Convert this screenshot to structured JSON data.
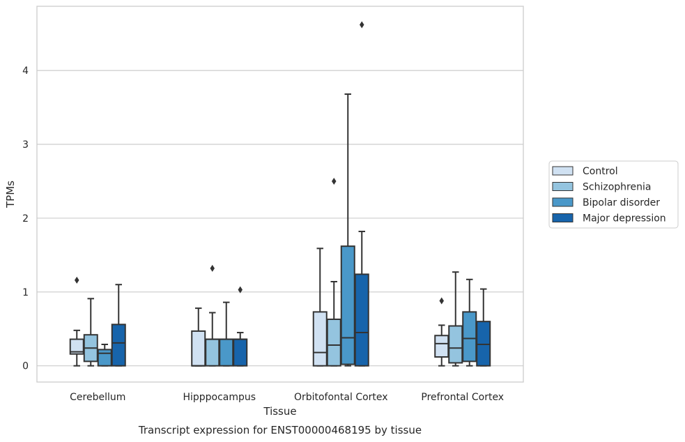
{
  "chart_data": {
    "type": "box",
    "xlabel": "Tissue",
    "ylabel": "TPMs",
    "caption": "Transcript expression for ENST00000468195 by tissue",
    "categories": [
      "Cerebellum",
      "Hipppocampus",
      "Orbitofontal Cortex",
      "Prefrontal Cortex"
    ],
    "ylim": [
      -0.22,
      4.87
    ],
    "yticks": [
      0,
      1,
      2,
      3,
      4
    ],
    "grid": "horizontal",
    "legend_position": "right",
    "series": [
      {
        "name": "Control",
        "color": "#d0e1f2",
        "boxes": [
          {
            "whisker_low": 0.0,
            "q1": 0.16,
            "median": 0.19,
            "q3": 0.36,
            "whisker_high": 0.48,
            "outliers": [
              1.16
            ]
          },
          {
            "whisker_low": 0.0,
            "q1": 0.0,
            "median": 0.0,
            "q3": 0.47,
            "whisker_high": 0.78,
            "outliers": []
          },
          {
            "whisker_low": 0.0,
            "q1": 0.0,
            "median": 0.18,
            "q3": 0.73,
            "whisker_high": 1.59,
            "outliers": []
          },
          {
            "whisker_low": 0.0,
            "q1": 0.12,
            "median": 0.3,
            "q3": 0.41,
            "whisker_high": 0.55,
            "outliers": [
              0.88
            ]
          }
        ]
      },
      {
        "name": "Schizophrenia",
        "color": "#94c4df",
        "boxes": [
          {
            "whisker_low": 0.0,
            "q1": 0.06,
            "median": 0.24,
            "q3": 0.42,
            "whisker_high": 0.91,
            "outliers": []
          },
          {
            "whisker_low": 0.0,
            "q1": 0.0,
            "median": 0.36,
            "q3": 0.36,
            "whisker_high": 0.72,
            "outliers": [
              1.32
            ]
          },
          {
            "whisker_low": 0.0,
            "q1": 0.0,
            "median": 0.28,
            "q3": 0.63,
            "whisker_high": 1.14,
            "outliers": [
              2.5
            ]
          },
          {
            "whisker_low": 0.0,
            "q1": 0.04,
            "median": 0.24,
            "q3": 0.54,
            "whisker_high": 1.27,
            "outliers": []
          }
        ]
      },
      {
        "name": "Bipolar disorder",
        "color": "#4a98c9",
        "boxes": [
          {
            "whisker_low": 0.0,
            "q1": 0.0,
            "median": 0.17,
            "q3": 0.22,
            "whisker_high": 0.29,
            "outliers": []
          },
          {
            "whisker_low": 0.0,
            "q1": 0.0,
            "median": 0.36,
            "q3": 0.36,
            "whisker_high": 0.86,
            "outliers": []
          },
          {
            "whisker_low": 0.0,
            "q1": 0.02,
            "median": 0.38,
            "q3": 1.62,
            "whisker_high": 3.68,
            "outliers": []
          },
          {
            "whisker_low": 0.0,
            "q1": 0.06,
            "median": 0.37,
            "q3": 0.73,
            "whisker_high": 1.17,
            "outliers": []
          }
        ]
      },
      {
        "name": "Major depression",
        "color": "#1764ab",
        "boxes": [
          {
            "whisker_low": 0.0,
            "q1": 0.0,
            "median": 0.31,
            "q3": 0.56,
            "whisker_high": 1.1,
            "outliers": []
          },
          {
            "whisker_low": 0.0,
            "q1": 0.0,
            "median": 0.36,
            "q3": 0.36,
            "whisker_high": 0.45,
            "outliers": [
              1.03
            ]
          },
          {
            "whisker_low": 0.0,
            "q1": 0.0,
            "median": 0.45,
            "q3": 1.24,
            "whisker_high": 1.82,
            "outliers": [
              4.62
            ]
          },
          {
            "whisker_low": 0.0,
            "q1": 0.0,
            "median": 0.29,
            "q3": 0.6,
            "whisker_high": 1.04,
            "outliers": []
          }
        ]
      }
    ]
  }
}
